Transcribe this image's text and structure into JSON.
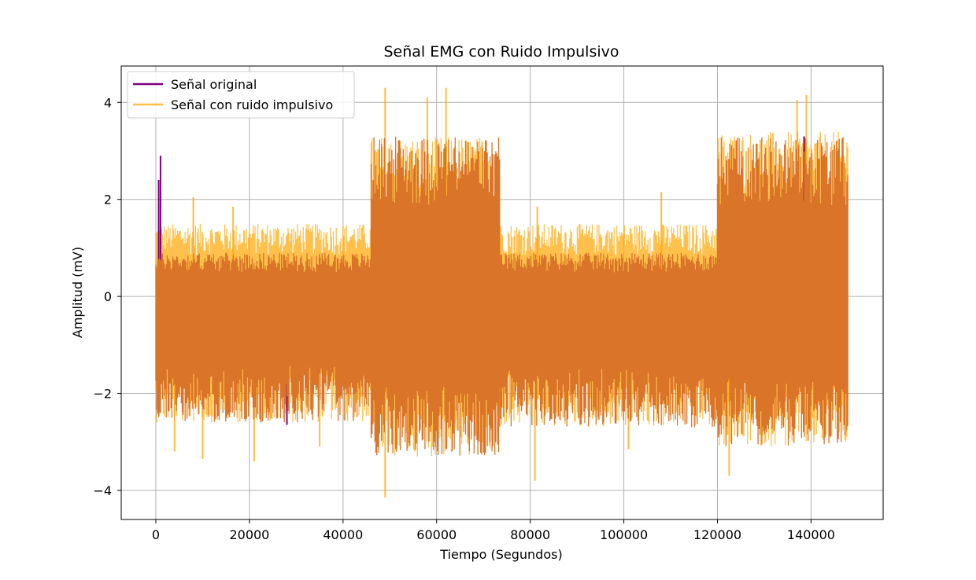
{
  "chart_data": {
    "type": "line",
    "title": "Señal EMG con Ruido Impulsivo",
    "xlabel": "Tiempo (Segundos)",
    "ylabel": "Amplitud (mV)",
    "xlim": [
      -7400,
      155400
    ],
    "ylim": [
      -4.6,
      4.75
    ],
    "xticks": [
      0,
      20000,
      40000,
      60000,
      80000,
      100000,
      120000,
      140000
    ],
    "xtick_labels": [
      "0",
      "20000",
      "40000",
      "60000",
      "80000",
      "100000",
      "120000",
      "140000"
    ],
    "yticks": [
      -4,
      -2,
      0,
      2,
      4
    ],
    "ytick_labels": [
      "−4",
      "−2",
      "0",
      "2",
      "4"
    ],
    "grid": true,
    "legend_position": "upper left",
    "series": [
      {
        "name": "Señal original",
        "color": "#800080",
        "x_range": [
          0,
          148000
        ],
        "segments": [
          {
            "x": [
              0,
              46000
            ],
            "min": -2.6,
            "max": 0.9
          },
          {
            "x": [
              46000,
              73500
            ],
            "min": -3.3,
            "max": 3.3
          },
          {
            "x": [
              73500,
              120000
            ],
            "min": -2.7,
            "max": 0.9
          },
          {
            "x": [
              120000,
              148000
            ],
            "min": -3.1,
            "max": 3.3
          }
        ],
        "peaks": [
          {
            "x": 1000,
            "y": 2.9
          },
          {
            "x": 600,
            "y": 2.4
          },
          {
            "x": 32000,
            "y": -1.75
          },
          {
            "x": 28000,
            "y": -2.65
          },
          {
            "x": 138500,
            "y": 3.3
          }
        ]
      },
      {
        "name": "Señal con ruido impulsivo",
        "color": "#FFA500",
        "x_range": [
          0,
          148000
        ],
        "segments": [
          {
            "x": [
              0,
              46000
            ],
            "min": -2.6,
            "max": 1.5
          },
          {
            "x": [
              46000,
              73500
            ],
            "min": -3.3,
            "max": 3.3
          },
          {
            "x": [
              73500,
              120000
            ],
            "min": -2.7,
            "max": 1.5
          },
          {
            "x": [
              120000,
              148000
            ],
            "min": -3.1,
            "max": 3.4
          }
        ],
        "spikes": [
          {
            "x": 49000,
            "y": 4.3
          },
          {
            "x": 49000,
            "y": -4.15
          },
          {
            "x": 58000,
            "y": 4.1
          },
          {
            "x": 62000,
            "y": 4.3
          },
          {
            "x": 137000,
            "y": 4.05
          },
          {
            "x": 139000,
            "y": 4.15
          },
          {
            "x": 81000,
            "y": -3.8
          },
          {
            "x": 122500,
            "y": -3.7
          },
          {
            "x": 10000,
            "y": -3.35
          },
          {
            "x": 21000,
            "y": -3.4
          },
          {
            "x": 4000,
            "y": -3.2
          },
          {
            "x": 35000,
            "y": -3.1
          },
          {
            "x": 101000,
            "y": -3.15
          },
          {
            "x": 8000,
            "y": 2.05
          },
          {
            "x": 16500,
            "y": 1.85
          },
          {
            "x": 108000,
            "y": 2.15
          },
          {
            "x": 81500,
            "y": 1.85
          }
        ]
      }
    ],
    "overlap_color": "#D97428"
  }
}
